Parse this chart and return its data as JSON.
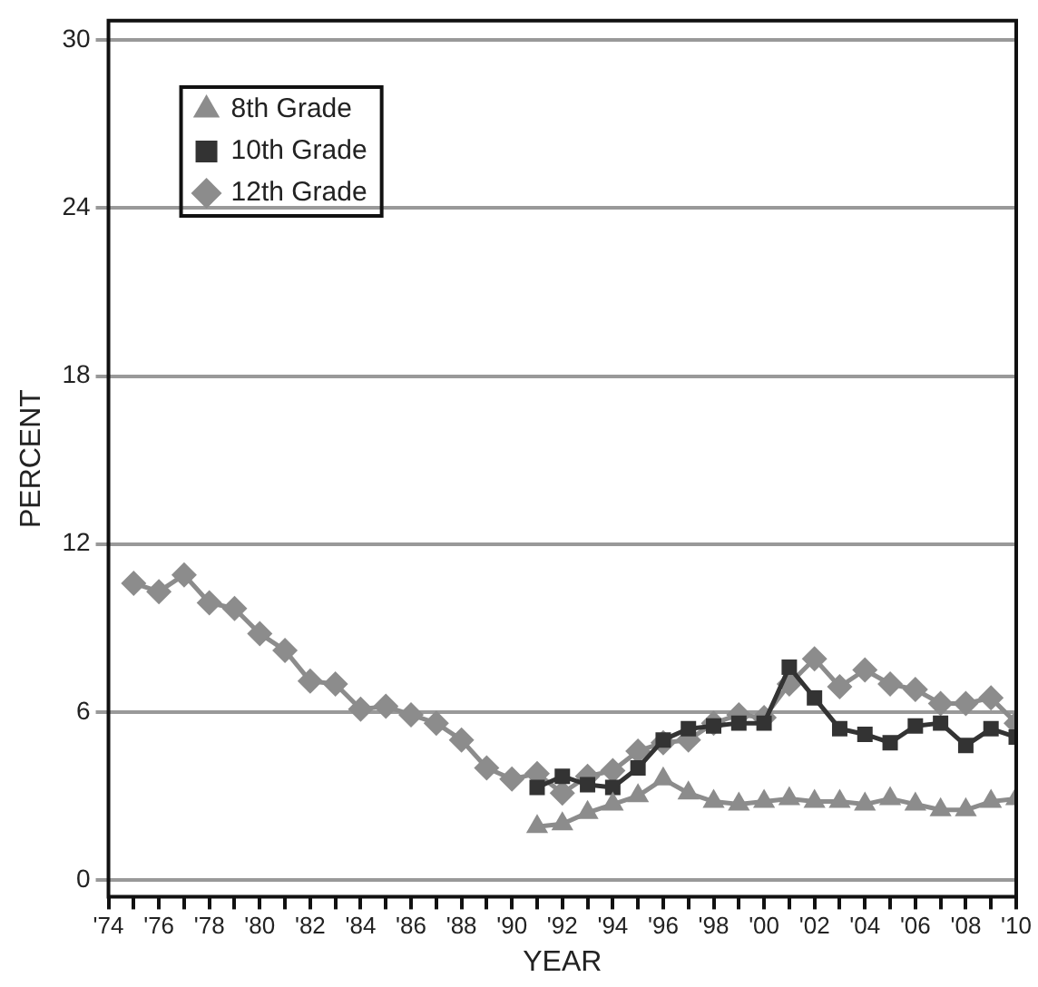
{
  "chart_data": {
    "type": "line",
    "xlabel": "YEAR",
    "ylabel": "PERCENT",
    "xlim": [
      1974,
      2010
    ],
    "ylim": [
      -0.6,
      30.7
    ],
    "xticks": [
      {
        "value": 1974,
        "label": "'74"
      },
      {
        "value": 1975,
        "label": null
      },
      {
        "value": 1976,
        "label": "'76"
      },
      {
        "value": 1977,
        "label": null
      },
      {
        "value": 1978,
        "label": "'78"
      },
      {
        "value": 1979,
        "label": null
      },
      {
        "value": 1980,
        "label": "'80"
      },
      {
        "value": 1981,
        "label": null
      },
      {
        "value": 1982,
        "label": "'82"
      },
      {
        "value": 1983,
        "label": null
      },
      {
        "value": 1984,
        "label": "'84"
      },
      {
        "value": 1985,
        "label": null
      },
      {
        "value": 1986,
        "label": "'86"
      },
      {
        "value": 1987,
        "label": null
      },
      {
        "value": 1988,
        "label": "'88"
      },
      {
        "value": 1989,
        "label": null
      },
      {
        "value": 1990,
        "label": "'90"
      },
      {
        "value": 1991,
        "label": null
      },
      {
        "value": 1992,
        "label": "'92"
      },
      {
        "value": 1993,
        "label": null
      },
      {
        "value": 1994,
        "label": "'94"
      },
      {
        "value": 1995,
        "label": null
      },
      {
        "value": 1996,
        "label": "'96"
      },
      {
        "value": 1997,
        "label": null
      },
      {
        "value": 1998,
        "label": "'98"
      },
      {
        "value": 1999,
        "label": null
      },
      {
        "value": 2000,
        "label": "'00"
      },
      {
        "value": 2001,
        "label": null
      },
      {
        "value": 2002,
        "label": "'02"
      },
      {
        "value": 2003,
        "label": null
      },
      {
        "value": 2004,
        "label": "'04"
      },
      {
        "value": 2005,
        "label": null
      },
      {
        "value": 2006,
        "label": "'06"
      },
      {
        "value": 2007,
        "label": null
      },
      {
        "value": 2008,
        "label": "'08"
      },
      {
        "value": 2009,
        "label": null
      },
      {
        "value": 2010,
        "label": "'10"
      }
    ],
    "yticks": [
      0,
      6,
      12,
      18,
      24,
      30
    ],
    "grid": "y",
    "legend": "top left",
    "line_style": "solid",
    "series": [
      {
        "name": "8th Grade",
        "color": "#8c8c8c",
        "marker": "triangle",
        "x": [
          1991,
          1992,
          1993,
          1994,
          1995,
          1996,
          1997,
          1998,
          1999,
          2000,
          2001,
          2002,
          2003,
          2004,
          2005,
          2006,
          2007,
          2008,
          2009,
          2010
        ],
        "values": [
          1.9,
          2.0,
          2.4,
          2.7,
          3.0,
          3.6,
          3.1,
          2.8,
          2.7,
          2.8,
          2.9,
          2.8,
          2.8,
          2.7,
          2.9,
          2.7,
          2.5,
          2.5,
          2.8,
          2.9
        ]
      },
      {
        "name": "10th Grade",
        "color": "#333333",
        "marker": "square",
        "x": [
          1991,
          1992,
          1993,
          1994,
          1995,
          1996,
          1997,
          1998,
          1999,
          2000,
          2001,
          2002,
          2003,
          2004,
          2005,
          2006,
          2007,
          2008,
          2009,
          2010
        ],
        "values": [
          3.3,
          3.7,
          3.4,
          3.3,
          4.0,
          5.0,
          5.4,
          5.5,
          5.6,
          5.6,
          7.6,
          6.5,
          5.4,
          5.2,
          4.9,
          5.5,
          5.6,
          4.8,
          5.4,
          5.1
        ]
      },
      {
        "name": "12th Grade",
        "color": "#8c8c8c",
        "marker": "diamond",
        "x": [
          1975,
          1976,
          1977,
          1978,
          1979,
          1980,
          1981,
          1982,
          1983,
          1984,
          1985,
          1986,
          1987,
          1988,
          1989,
          1990,
          1991,
          1992,
          1993,
          1994,
          1995,
          1996,
          1997,
          1998,
          1999,
          2000,
          2001,
          2002,
          2003,
          2004,
          2005,
          2006,
          2007,
          2008,
          2009,
          2010
        ],
        "values": [
          10.6,
          10.3,
          10.9,
          9.9,
          9.7,
          8.8,
          8.2,
          7.1,
          7.0,
          6.1,
          6.2,
          5.9,
          5.6,
          5.0,
          4.0,
          3.6,
          3.8,
          3.1,
          3.7,
          3.9,
          4.6,
          4.9,
          5.0,
          5.6,
          5.9,
          5.8,
          7.0,
          7.9,
          6.9,
          7.5,
          7.0,
          6.8,
          6.3,
          6.3,
          6.5,
          5.6
        ]
      }
    ]
  }
}
